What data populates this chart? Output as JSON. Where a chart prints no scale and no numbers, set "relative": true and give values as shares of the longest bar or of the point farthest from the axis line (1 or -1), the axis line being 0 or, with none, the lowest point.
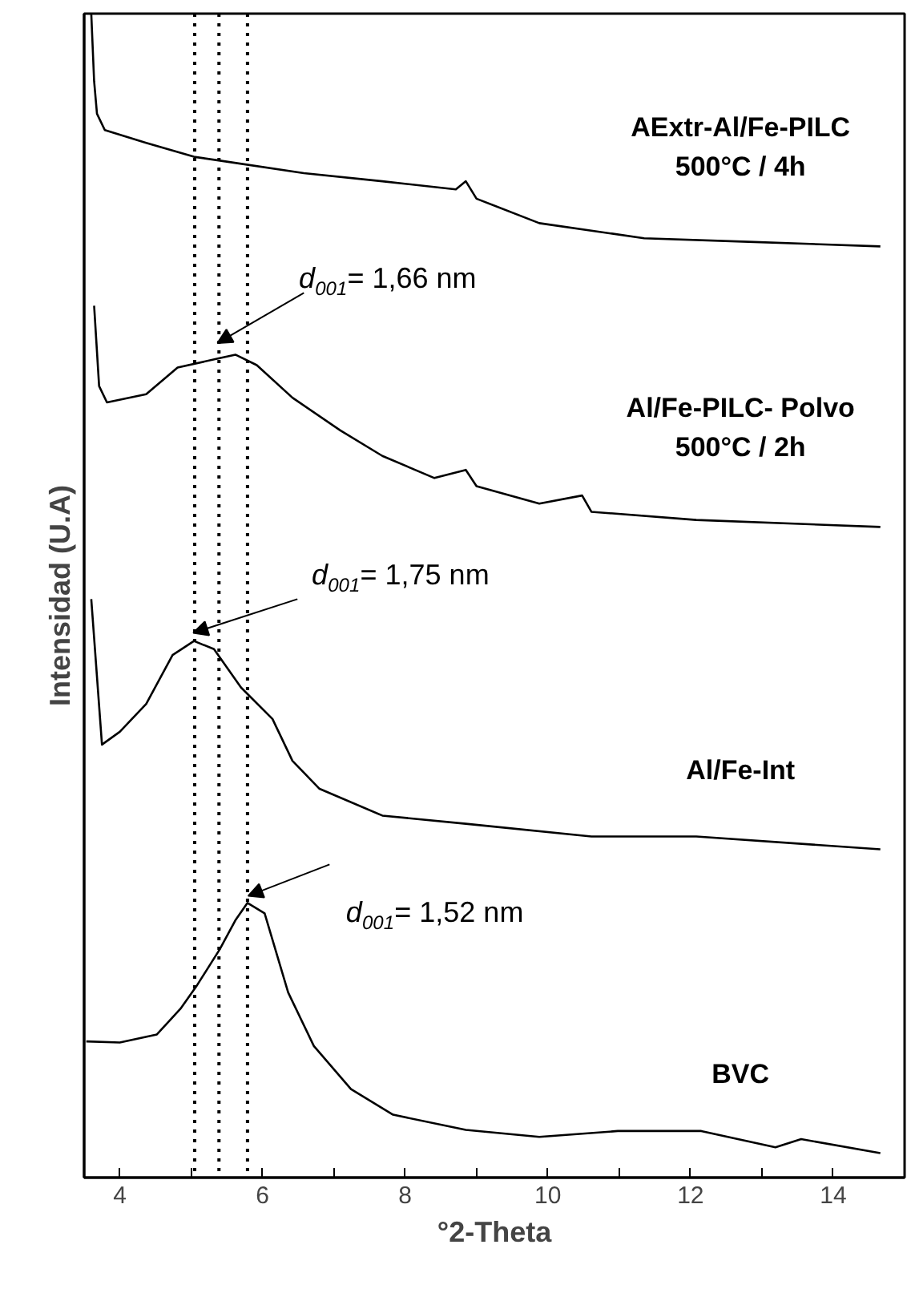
{
  "chart_data": {
    "type": "line",
    "relative": true,
    "xlabel": "°2-Theta",
    "ylabel": "Intensidad (U.A)",
    "xlim": [
      3.5,
      15
    ],
    "xticks": [
      4,
      {
        "value": 5,
        "label": null
      },
      6,
      {
        "value": 7,
        "label": null
      },
      8,
      {
        "value": 9,
        "label": null
      },
      10,
      {
        "value": 11,
        "label": null
      },
      12,
      {
        "value": 13,
        "label": null
      },
      14
    ],
    "grid": false,
    "legend": false,
    "marker": "none",
    "line_style": "solid",
    "tick_labels": "x",
    "series": [
      {
        "name": "AExtr-Al/Fe-PILC\n500°C / 4h",
        "color": "#000000",
        "x": [
          3.6,
          3.64,
          3.68,
          3.79,
          4.37,
          5.04,
          5.48,
          6.58,
          7.68,
          8.71,
          8.85,
          9.0,
          9.88,
          11.35,
          12.81,
          14.66
        ],
        "values": [
          1.0,
          0.942,
          0.914,
          0.9,
          0.889,
          0.877,
          0.873,
          0.863,
          0.856,
          0.849,
          0.856,
          0.841,
          0.82,
          0.807,
          0.804,
          0.8
        ]
      },
      {
        "name": "Al/Fe-PILC- Polvo\n500°C / 2h",
        "color": "#000000",
        "x": [
          3.64,
          3.71,
          3.82,
          4.37,
          4.81,
          5.4,
          5.62,
          5.92,
          6.42,
          7.09,
          7.68,
          8.41,
          8.85,
          9.0,
          9.88,
          10.48,
          10.61,
          12.08,
          14.66
        ],
        "values": [
          0.749,
          0.68,
          0.666,
          0.673,
          0.696,
          0.704,
          0.707,
          0.698,
          0.67,
          0.642,
          0.62,
          0.601,
          0.608,
          0.594,
          0.579,
          0.586,
          0.572,
          0.565,
          0.559
        ]
      },
      {
        "name": "Al/Fe-Int",
        "color": "#000000",
        "x": [
          3.6,
          3.75,
          4.0,
          4.37,
          4.74,
          5.04,
          5.32,
          5.7,
          6.14,
          6.42,
          6.8,
          7.68,
          8.85,
          10.61,
          12.08,
          14.66
        ],
        "values": [
          0.497,
          0.372,
          0.383,
          0.407,
          0.449,
          0.461,
          0.454,
          0.421,
          0.394,
          0.358,
          0.334,
          0.311,
          0.304,
          0.293,
          0.293,
          0.282
        ]
      },
      {
        "name": "BVC",
        "color": "#000000",
        "x": [
          3.53,
          4.0,
          4.52,
          4.85,
          5.07,
          5.4,
          5.62,
          5.79,
          6.03,
          6.36,
          6.72,
          7.24,
          7.83,
          8.85,
          9.88,
          10.98,
          12.15,
          13.19,
          13.55,
          14.66
        ],
        "values": [
          0.117,
          0.116,
          0.123,
          0.145,
          0.164,
          0.196,
          0.221,
          0.236,
          0.227,
          0.159,
          0.113,
          0.076,
          0.054,
          0.041,
          0.035,
          0.04,
          0.04,
          0.026,
          0.033,
          0.021
        ]
      }
    ],
    "ref_lines": [
      {
        "axis": "x",
        "value": 5.05,
        "line_style": "dotted",
        "color": "#000000"
      },
      {
        "axis": "x",
        "value": 5.39,
        "line_style": "dotted",
        "color": "#000000"
      },
      {
        "axis": "x",
        "value": 5.79,
        "line_style": "dotted",
        "color": "#000000"
      }
    ],
    "annotations": [
      {
        "text": "d$_{001}$= 1,66 nm",
        "x": 5.37,
        "y": 0.717
      },
      {
        "text": "d$_{001}$= 1,75 nm",
        "x": 5.03,
        "y": 0.468
      },
      {
        "text": "d$_{001}$= 1,52 nm",
        "x": 5.8,
        "y": 0.242
      }
    ]
  }
}
